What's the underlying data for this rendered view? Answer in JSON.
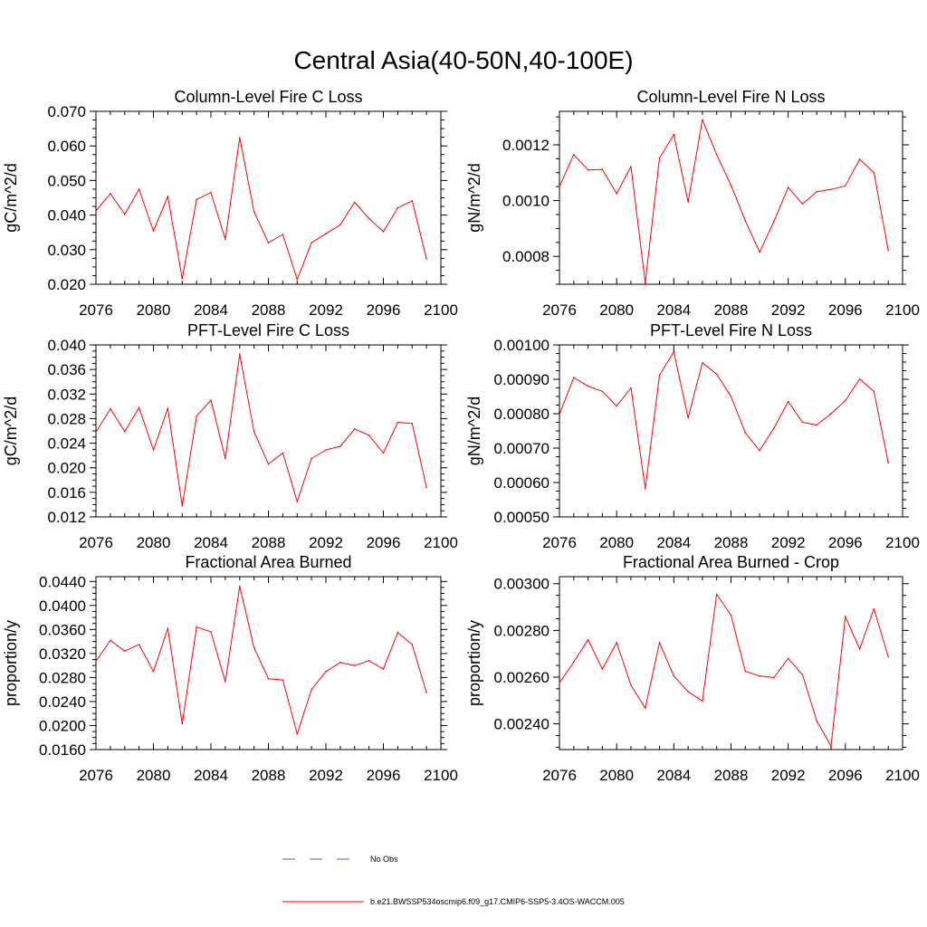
{
  "figure": {
    "title": "Central Asia(40-50N,40-100E)",
    "line_color": "#ff0000",
    "obs_color": "#4a5bd4",
    "legend": {
      "obs_label": "No Obs",
      "model_label": "b.e21.BWSSP534oscmip6.f09_g17.CMIP6-SSP5-3.4OS-WACCM.005"
    }
  },
  "chart_data": [
    {
      "type": "line",
      "title": "Column-Level Fire C Loss",
      "ylabel": "gC/m^2/d",
      "xlim": [
        2076,
        2100
      ],
      "ylim": [
        0.02,
        0.07
      ],
      "xticks": [
        "2076",
        "2080",
        "2084",
        "2088",
        "2092",
        "2096",
        "2100"
      ],
      "yticks": [
        "0.020",
        "0.030",
        "0.040",
        "0.050",
        "0.060",
        "0.070"
      ],
      "x": [
        2076,
        2077,
        2078,
        2079,
        2080,
        2081,
        2082,
        2083,
        2084,
        2085,
        2086,
        2087,
        2088,
        2089,
        2090,
        2091,
        2092,
        2093,
        2094,
        2095,
        2096,
        2097,
        2098,
        2099
      ],
      "series": [
        {
          "values": [
            0.0412,
            0.0462,
            0.0402,
            0.0475,
            0.0354,
            0.0454,
            0.0216,
            0.0445,
            0.0465,
            0.033,
            0.0624,
            0.041,
            0.032,
            0.0344,
            0.0214,
            0.032,
            0.0346,
            0.0372,
            0.0437,
            0.039,
            0.0352,
            0.0421,
            0.0441,
            0.0274
          ]
        }
      ]
    },
    {
      "type": "line",
      "title": "Column-Level Fire N Loss",
      "ylabel": "gN/m^2/d",
      "xlim": [
        2076,
        2100
      ],
      "ylim": [
        0.0007,
        0.00132
      ],
      "xticks": [
        "2076",
        "2080",
        "2084",
        "2088",
        "2092",
        "2096",
        "2100"
      ],
      "yticks": [
        "0.0008",
        "0.0010",
        "0.0012"
      ],
      "x": [
        2076,
        2077,
        2078,
        2079,
        2080,
        2081,
        2082,
        2083,
        2084,
        2085,
        2086,
        2087,
        2088,
        2089,
        2090,
        2091,
        2092,
        2093,
        2094,
        2095,
        2096,
        2097,
        2098,
        2099
      ],
      "series": [
        {
          "values": [
            0.00105,
            0.001165,
            0.00111,
            0.001112,
            0.001025,
            0.001122,
            0.000705,
            0.001152,
            0.001237,
            0.000995,
            0.00129,
            0.001165,
            0.001055,
            0.000928,
            0.000815,
            0.000925,
            0.001047,
            0.000988,
            0.001032,
            0.00104,
            0.001053,
            0.001148,
            0.0011,
            0.000822
          ]
        }
      ]
    },
    {
      "type": "line",
      "title": "PFT-Level Fire C Loss",
      "ylabel": "gC/m^2/d",
      "xlim": [
        2076,
        2100
      ],
      "ylim": [
        0.012,
        0.04
      ],
      "xticks": [
        "2076",
        "2080",
        "2084",
        "2088",
        "2092",
        "2096",
        "2100"
      ],
      "yticks": [
        "0.012",
        "0.016",
        "0.020",
        "0.024",
        "0.028",
        "0.032",
        "0.036",
        "0.040"
      ],
      "x": [
        2076,
        2077,
        2078,
        2079,
        2080,
        2081,
        2082,
        2083,
        2084,
        2085,
        2086,
        2087,
        2088,
        2089,
        2090,
        2091,
        2092,
        2093,
        2094,
        2095,
        2096,
        2097,
        2098,
        2099
      ],
      "series": [
        {
          "values": [
            0.0258,
            0.0296,
            0.0259,
            0.0298,
            0.0229,
            0.0297,
            0.0138,
            0.0284,
            0.031,
            0.0215,
            0.0385,
            0.0259,
            0.0206,
            0.0224,
            0.0145,
            0.0215,
            0.0229,
            0.0235,
            0.0263,
            0.0253,
            0.0224,
            0.0274,
            0.0272,
            0.0168
          ]
        }
      ]
    },
    {
      "type": "line",
      "title": "PFT-Level Fire N Loss",
      "ylabel": "gN/m^2/d",
      "xlim": [
        2076,
        2100
      ],
      "ylim": [
        0.0005,
        0.001
      ],
      "xticks": [
        "2076",
        "2080",
        "2084",
        "2088",
        "2092",
        "2096",
        "2100"
      ],
      "yticks": [
        "0.00050",
        "0.00060",
        "0.00070",
        "0.00080",
        "0.00090",
        "0.00100"
      ],
      "x": [
        2076,
        2077,
        2078,
        2079,
        2080,
        2081,
        2082,
        2083,
        2084,
        2085,
        2086,
        2087,
        2088,
        2089,
        2090,
        2091,
        2092,
        2093,
        2094,
        2095,
        2096,
        2097,
        2098,
        2099
      ],
      "series": [
        {
          "values": [
            0.000798,
            0.000905,
            0.00088,
            0.000865,
            0.000822,
            0.000875,
            0.000582,
            0.000912,
            0.00098,
            0.000788,
            0.000948,
            0.000915,
            0.00085,
            0.000745,
            0.000693,
            0.000758,
            0.000835,
            0.000775,
            0.000767,
            0.0008,
            0.000838,
            0.000901,
            0.000865,
            0.000657
          ]
        }
      ]
    },
    {
      "type": "line",
      "title": "Fractional Area Burned",
      "ylabel": "proportion/y",
      "xlim": [
        2076,
        2100
      ],
      "ylim": [
        0.016,
        0.0448
      ],
      "xticks": [
        "2076",
        "2080",
        "2084",
        "2088",
        "2092",
        "2096",
        "2100"
      ],
      "yticks": [
        "0.0160",
        "0.0200",
        "0.0240",
        "0.0280",
        "0.0320",
        "0.0360",
        "0.0400",
        "0.0440"
      ],
      "x": [
        2076,
        2077,
        2078,
        2079,
        2080,
        2081,
        2082,
        2083,
        2084,
        2085,
        2086,
        2087,
        2088,
        2089,
        2090,
        2091,
        2092,
        2093,
        2094,
        2095,
        2096,
        2097,
        2098,
        2099
      ],
      "series": [
        {
          "values": [
            0.0307,
            0.0342,
            0.0324,
            0.0335,
            0.029,
            0.0362,
            0.0203,
            0.0364,
            0.0356,
            0.0273,
            0.0432,
            0.033,
            0.0278,
            0.0276,
            0.0186,
            0.026,
            0.029,
            0.0305,
            0.03,
            0.0308,
            0.0294,
            0.0355,
            0.0335,
            0.0255
          ]
        }
      ]
    },
    {
      "type": "line",
      "title": "Fractional Area Burned - Crop",
      "ylabel": "proportion/y",
      "xlim": [
        2076,
        2100
      ],
      "ylim": [
        0.00229,
        0.00303
      ],
      "xticks": [
        "2076",
        "2080",
        "2084",
        "2088",
        "2092",
        "2096",
        "2100"
      ],
      "yticks": [
        "0.00240",
        "0.00260",
        "0.00280",
        "0.00300"
      ],
      "x": [
        2076,
        2077,
        2078,
        2079,
        2080,
        2081,
        2082,
        2083,
        2084,
        2085,
        2086,
        2087,
        2088,
        2089,
        2090,
        2091,
        2092,
        2093,
        2094,
        2095,
        2096,
        2097,
        2098,
        2099
      ],
      "series": [
        {
          "values": [
            0.002575,
            0.002665,
            0.00276,
            0.002635,
            0.002748,
            0.002565,
            0.002468,
            0.002748,
            0.002605,
            0.002538,
            0.002498,
            0.002955,
            0.002865,
            0.002625,
            0.002605,
            0.002598,
            0.00268,
            0.00261,
            0.002412,
            0.002305,
            0.00286,
            0.00272,
            0.002892,
            0.002688
          ]
        }
      ]
    }
  ]
}
